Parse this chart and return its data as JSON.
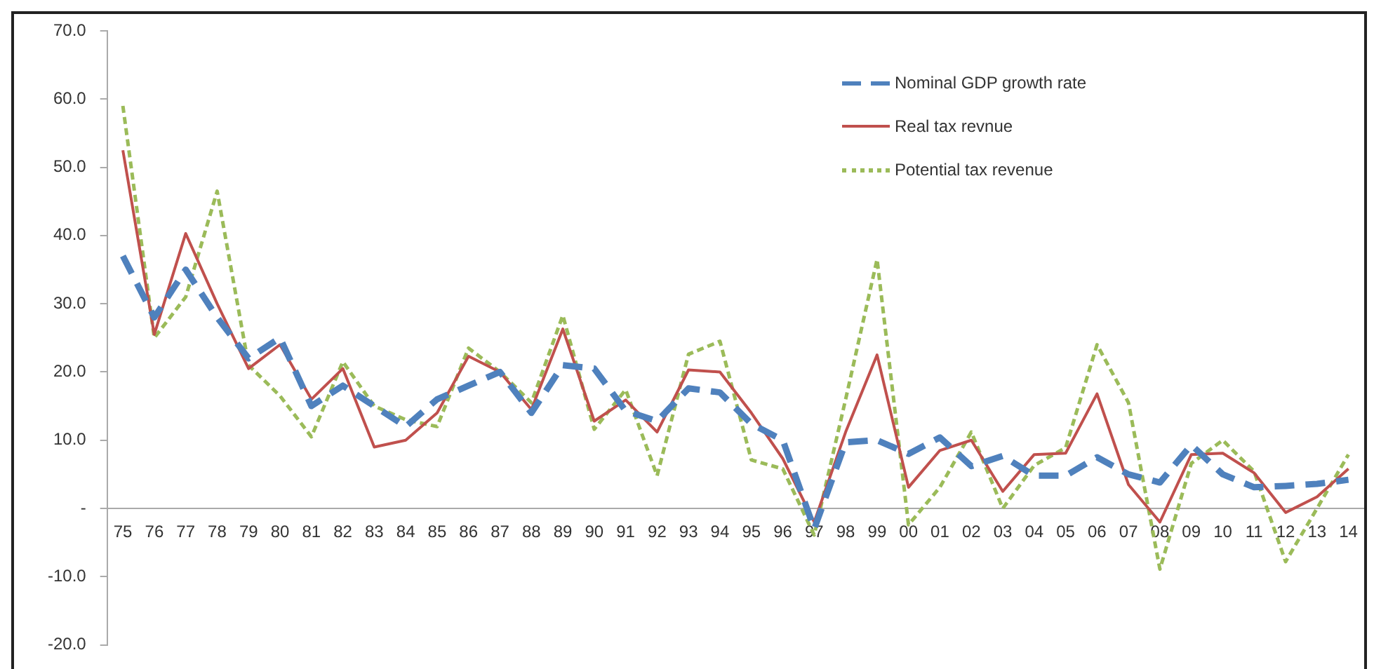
{
  "chart_data": {
    "type": "line",
    "categories": [
      "75",
      "76",
      "77",
      "78",
      "79",
      "80",
      "81",
      "82",
      "83",
      "84",
      "85",
      "86",
      "87",
      "88",
      "89",
      "90",
      "91",
      "92",
      "93",
      "94",
      "95",
      "96",
      "97",
      "98",
      "99",
      "00",
      "01",
      "02",
      "03",
      "04",
      "05",
      "06",
      "07",
      "08",
      "09",
      "10",
      "11",
      "12",
      "13",
      "14"
    ],
    "series": [
      {
        "name": "Nominal GDP growth rate",
        "color": "#4f81bd",
        "line_style": "dashed",
        "values": [
          37,
          28,
          35,
          28,
          22,
          25,
          15,
          18,
          15,
          12,
          16,
          18,
          20,
          14,
          21,
          20.5,
          14.3,
          12.8,
          17.6,
          17,
          12.4,
          10,
          -3,
          9.7,
          10,
          8,
          10.4,
          6.2,
          7.7,
          4.8,
          4.8,
          7.5,
          5,
          3.8,
          9.3,
          5,
          3.1,
          3.3,
          3.6,
          4.2
        ]
      },
      {
        "name": "Real tax revnue",
        "color": "#c0504d",
        "line_style": "solid",
        "values": [
          52.5,
          25.5,
          40.3,
          30,
          20.5,
          24,
          16,
          20.5,
          9,
          10,
          14,
          22.3,
          20,
          14.5,
          26.3,
          12.8,
          15.9,
          11.2,
          20.3,
          20,
          14,
          7.3,
          -2,
          11.2,
          22.5,
          3.1,
          8.5,
          10,
          2.5,
          7.9,
          8.1,
          16.8,
          3.5,
          -2,
          7.9,
          8.1,
          5.2,
          -0.6,
          1.7,
          5.8
        ]
      },
      {
        "name": "Potential tax revenue",
        "color": "#9bbb59",
        "line_style": "dotted",
        "values": [
          59,
          25,
          31,
          46.5,
          21,
          16.5,
          10.5,
          21.5,
          15,
          13,
          12,
          23.5,
          20,
          15.5,
          28.3,
          11.6,
          17.4,
          4.8,
          22.6,
          24.5,
          7.1,
          5.8,
          -3.9,
          16,
          36.5,
          -2.4,
          3.1,
          11.2,
          0,
          6.3,
          8.9,
          24,
          15.5,
          -8.9,
          6.6,
          10,
          5.4,
          -7.8,
          0,
          7.9
        ]
      }
    ],
    "ylim": [
      -20,
      70
    ],
    "yticks": [
      {
        "value": -20,
        "label": "-20.0"
      },
      {
        "value": -10,
        "label": "-10.0"
      },
      {
        "value": 0,
        "label": "-"
      },
      {
        "value": 10,
        "label": "10.0"
      },
      {
        "value": 20,
        "label": "20.0"
      },
      {
        "value": 30,
        "label": "30.0"
      },
      {
        "value": 40,
        "label": "40.0"
      },
      {
        "value": 50,
        "label": "50.0"
      },
      {
        "value": 60,
        "label": "60.0"
      },
      {
        "value": 70,
        "label": "70.0"
      }
    ],
    "grid": false,
    "legend": "top right",
    "marker": "none"
  }
}
